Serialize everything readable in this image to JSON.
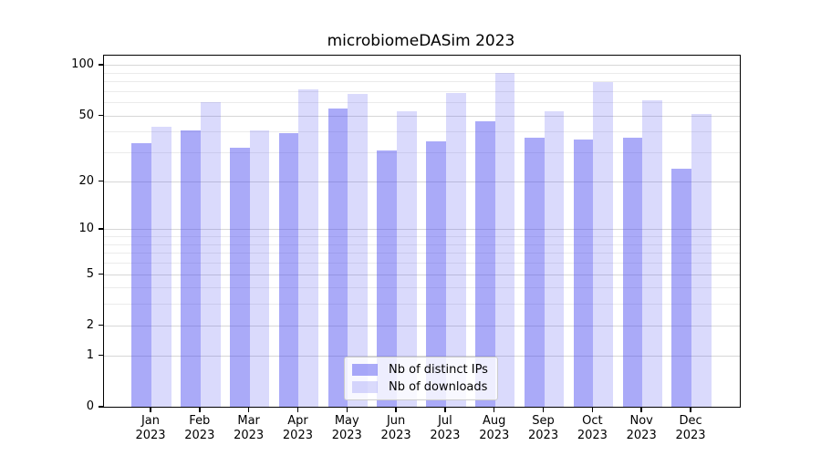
{
  "chart_data": {
    "type": "bar",
    "title": "microbiomeDASim 2023",
    "year_line": "2023",
    "categories": [
      "Jan",
      "Feb",
      "Mar",
      "Apr",
      "May",
      "Jun",
      "Jul",
      "Aug",
      "Sep",
      "Oct",
      "Nov",
      "Dec"
    ],
    "series": [
      {
        "name": "Nb of distinct IPs",
        "values": [
          34,
          41,
          32,
          39,
          55,
          31,
          35,
          46,
          37,
          36,
          37,
          24
        ],
        "color": "rgba(70,70,240,0.46)"
      },
      {
        "name": "Nb of downloads",
        "values": [
          43,
          60,
          41,
          72,
          67,
          53,
          68,
          90,
          53,
          79,
          62,
          51
        ],
        "color": "rgba(70,70,240,0.20)"
      }
    ],
    "yscale": "log10(1+x)",
    "ylim": [
      0,
      113.6
    ],
    "yticks_major": [
      0,
      1,
      2,
      5,
      10,
      20,
      50,
      100
    ],
    "yticks_minor": [
      3,
      4,
      6,
      7,
      8,
      9,
      30,
      40,
      60,
      70,
      80,
      90
    ],
    "grid": "horizontal",
    "legend_position": "lower center",
    "colors": {
      "grid_major": "#d7d7d7",
      "grid_minor": "#ebebeb",
      "spine": "#000000",
      "bar_base": "#4646f0"
    }
  }
}
